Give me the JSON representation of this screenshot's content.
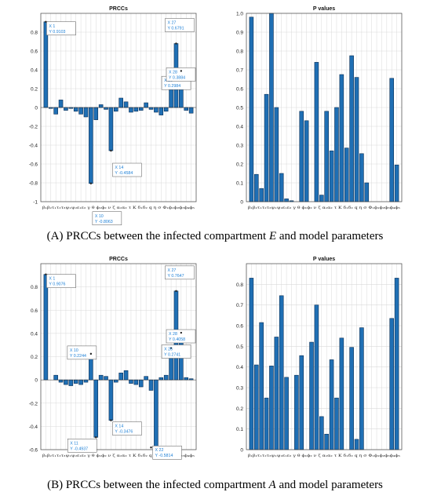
{
  "chart_data": [
    {
      "panel": "A",
      "type": "bar",
      "title": "PRCCs",
      "ylim": [
        -1,
        1
      ],
      "yticks": [
        -1,
        -0.8,
        -0.6,
        -0.4,
        -0.2,
        0,
        0.2,
        0.4,
        0.6,
        0.8
      ],
      "ytick_labels": [
        "-1",
        "-0.8",
        "-0.6",
        "-0.4",
        "-0.2",
        "0",
        "0.2",
        "0.4",
        "0.6",
        "0.8"
      ],
      "grid": true,
      "x": [
        1,
        2,
        3,
        4,
        5,
        6,
        7,
        8,
        9,
        10,
        11,
        12,
        13,
        14,
        15,
        16,
        17,
        18,
        19,
        20,
        21,
        22,
        23,
        24,
        25,
        26,
        27,
        28,
        29,
        30
      ],
      "values": [
        0.9103,
        -0.01,
        -0.07,
        0.08,
        -0.03,
        -0.01,
        -0.04,
        -0.07,
        -0.1,
        -0.8063,
        -0.13,
        0.03,
        -0.02,
        -0.4584,
        -0.04,
        0.1,
        0.06,
        -0.05,
        -0.04,
        -0.03,
        0.05,
        -0.02,
        -0.05,
        -0.08,
        -0.04,
        0.2984,
        0.6791,
        0.3884,
        -0.03,
        -0.06
      ],
      "datatips": [
        {
          "x_label": "X 1",
          "y_label": "Y 0.9103",
          "x": 1,
          "y": 0.9103
        },
        {
          "x_label": "X 10",
          "y_label": "Y -0.8063",
          "x": 10,
          "y": -0.8063
        },
        {
          "x_label": "X 14",
          "y_label": "Y -0.4584",
          "x": 14,
          "y": -0.4584
        },
        {
          "x_label": "X 26",
          "y_label": "Y 0.2984",
          "x": 26,
          "y": 0.2984
        },
        {
          "x_label": "X 27",
          "y_label": "Y 0.6791",
          "x": 27,
          "y": 0.6791
        },
        {
          "x_label": "X 28",
          "y_label": "Y 0.3884",
          "x": 28,
          "y": 0.3884
        }
      ],
      "xtick_text": "β₁β₂τ₁τ₂τ₃ψ₁ψ₂ε₁ε₂ γ θ ϕ₁ϕ₂ ν ζ α₁α₂ τ K δ₁δ₂ q η σ Φ₁ϕ₁ϕ₂ϕ₃ϕ₄ϕ₅"
    },
    {
      "panel": "A",
      "type": "bar",
      "title": "P values",
      "ylim": [
        0,
        1
      ],
      "grid": true,
      "x": [
        1,
        2,
        3,
        4,
        5,
        6,
        7,
        8,
        9,
        10,
        11,
        12,
        13,
        14,
        15,
        16,
        17,
        18,
        19,
        20,
        21,
        22,
        23,
        24,
        25,
        26,
        27,
        28,
        29,
        30
      ],
      "values": [
        0.98,
        0.145,
        0.07,
        0.57,
        1.0,
        0.5,
        0.15,
        0.015,
        0.005,
        0.0,
        0.48,
        0.43,
        0.0,
        0.74,
        0.035,
        0.48,
        0.27,
        0.5,
        0.675,
        0.285,
        0.775,
        0.66,
        0.255,
        0.1,
        0.0,
        0.0,
        0.0,
        0.0,
        0.655,
        0.195
      ],
      "xtick_text": "β₁β₂τ₁τ₂τ₃ψ₁ψ₂ε₁ε₂ γ θ ϕ₁ϕ₂ ν ζ α₁α₂ τ K δ₁δ₂ q η σ Φ₁ϕ₁ϕ₂ϕ₃ϕ₄ϕ₅"
    },
    {
      "panel": "B",
      "type": "bar",
      "title": "PRCCs",
      "ylim": [
        -0.6,
        1
      ],
      "yticks": [
        -0.6,
        -0.4,
        -0.2,
        0,
        0.2,
        0.4,
        0.6,
        0.8
      ],
      "ytick_labels": [
        "-0.6",
        "-0.4",
        "-0.2",
        "0",
        "0.2",
        "0.4",
        "0.6",
        "0.8"
      ],
      "grid": true,
      "x": [
        1,
        2,
        3,
        4,
        5,
        6,
        7,
        8,
        9,
        10,
        11,
        12,
        13,
        14,
        15,
        16,
        17,
        18,
        19,
        20,
        21,
        22,
        23,
        24,
        25,
        26,
        27,
        28,
        29,
        30
      ],
      "values": [
        0.9076,
        0.0,
        0.04,
        -0.02,
        -0.04,
        -0.05,
        -0.03,
        -0.04,
        -0.02,
        0.2244,
        -0.4937,
        0.04,
        0.03,
        -0.3476,
        -0.02,
        0.06,
        0.08,
        -0.03,
        -0.04,
        -0.06,
        0.03,
        -0.09,
        -0.5814,
        0.02,
        0.04,
        0.2741,
        0.7647,
        0.4058,
        0.02,
        0.01
      ],
      "datatips": [
        {
          "x_label": "X 1",
          "y_label": "Y 0.9076",
          "x": 1,
          "y": 0.9076
        },
        {
          "x_label": "X 10",
          "y_label": "Y 0.2244",
          "x": 10,
          "y": 0.2244
        },
        {
          "x_label": "X 11",
          "y_label": "Y -0.4937",
          "x": 11,
          "y": -0.4937
        },
        {
          "x_label": "X 14",
          "y_label": "Y -0.3476",
          "x": 14,
          "y": -0.3476
        },
        {
          "x_label": "X 22",
          "y_label": "Y -0.5814",
          "x": 22,
          "y": -0.5814
        },
        {
          "x_label": "X 26",
          "y_label": "Y 0.2741",
          "x": 26,
          "y": 0.2741
        },
        {
          "x_label": "X 27",
          "y_label": "Y 0.7647",
          "x": 27,
          "y": 0.7647
        },
        {
          "x_label": "X 28",
          "y_label": "Y 0.4058",
          "x": 28,
          "y": 0.4058
        }
      ],
      "xtick_text": "β₁β₂τ₁τ₂τ₃ψ₁ψ₂ε₁ε₂ γ θ ϕ₁ϕ₂ ν ζ α₁α₂ τ K δ₁δ₂ q η σ Φ₁ϕ₁ϕ₂ϕ₃ϕ₄ϕ₅"
    },
    {
      "panel": "B",
      "type": "bar",
      "title": "P values",
      "ylim": [
        0,
        0.9
      ],
      "yticks": [
        0,
        0.1,
        0.2,
        0.3,
        0.4,
        0.5,
        0.6,
        0.7,
        0.8
      ],
      "ytick_labels": [
        "0",
        "0.1",
        "0.2",
        "0.3",
        "0.4",
        "0.5",
        "0.6",
        "0.7",
        "0.8"
      ],
      "grid": true,
      "x": [
        1,
        2,
        3,
        4,
        5,
        6,
        7,
        8,
        9,
        10,
        11,
        12,
        13,
        14,
        15,
        16,
        17,
        18,
        19,
        20,
        21,
        22,
        23,
        24,
        25,
        26,
        27,
        28,
        29,
        30
      ],
      "values": [
        0.83,
        0.41,
        0.615,
        0.25,
        0.405,
        0.545,
        0.745,
        0.35,
        0.0,
        0.36,
        0.455,
        0.0,
        0.52,
        0.7,
        0.16,
        0.075,
        0.435,
        0.25,
        0.54,
        0.0,
        0.495,
        0.05,
        0.59,
        0.0,
        0.0,
        0.0,
        0.0,
        0.0,
        0.635,
        0.83
      ],
      "xtick_text": "β₁β₂τ₁τ₂τ₃ψ₁ψ₂ε₁ε₂ γ θ ϕ₁ϕ₂ ν ζ α₁α₂ τ K δ₁δ₂ q η σ Φ₁ϕ₁ϕ₂ϕ₃ϕ₄ϕ₅"
    }
  ],
  "captions": {
    "a_tag": "(A)",
    "a_text_1": " PRCCs between the infected compartment ",
    "a_var": "E",
    "a_text_2": " and model parameters",
    "b_tag": "(B)",
    "b_text_1": " PRCCs between the infected compartment ",
    "b_var": "A",
    "b_text_2": " and model parameters"
  },
  "colors": {
    "bar": "#1f6fb4",
    "bar_edge": "#0b2f55",
    "grid": "#d9d9d9",
    "tip_text": "#1c7fd6"
  }
}
